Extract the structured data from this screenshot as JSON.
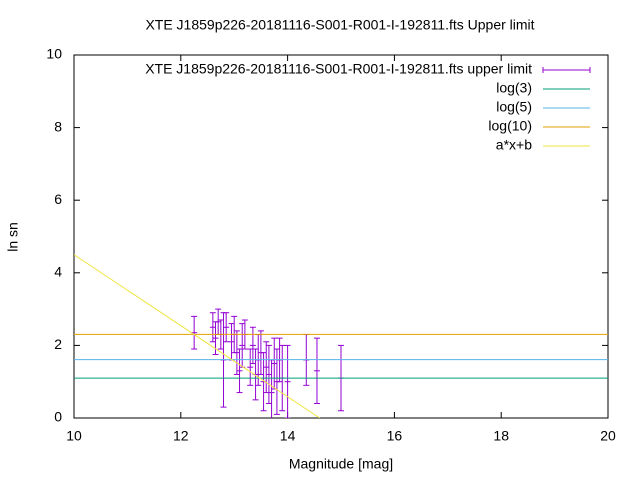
{
  "chart_data": {
    "type": "errorbar",
    "title": "XTE J1859p226-20181116-S001-R001-I-192811.fts Upper limit",
    "xlabel": "Magnitude [mag]",
    "ylabel": "ln sn",
    "xlim": [
      10,
      20
    ],
    "ylim": [
      0,
      10
    ],
    "xticks": [
      10,
      12,
      14,
      16,
      18,
      20
    ],
    "yticks": [
      0,
      2,
      4,
      6,
      8,
      10
    ],
    "legend": "top-right",
    "series": [
      {
        "name": "XTE J1859p226-20181116-S001-R001-I-192811.fts upper limit",
        "color": "#9400d3",
        "style": "errorbars",
        "x": [
          12.25,
          12.6,
          12.65,
          12.7,
          12.75,
          12.8,
          12.85,
          12.95,
          13.0,
          13.05,
          13.1,
          13.15,
          13.2,
          13.3,
          13.35,
          13.4,
          13.45,
          13.5,
          13.55,
          13.6,
          13.65,
          13.7,
          13.75,
          13.8,
          13.85,
          13.9,
          14.0,
          14.35,
          14.55,
          15.0
        ],
        "values": [
          2.35,
          2.5,
          2.2,
          2.65,
          2.3,
          1.6,
          2.5,
          2.1,
          2.3,
          1.8,
          1.3,
          2.0,
          2.3,
          1.4,
          2.0,
          1.2,
          1.6,
          1.8,
          1.0,
          1.4,
          1.2,
          0.7,
          1.5,
          1.0,
          1.6,
          1.1,
          1.0,
          1.6,
          1.3,
          1.1
        ],
        "errors": [
          0.45,
          0.4,
          0.45,
          0.35,
          0.4,
          1.3,
          0.4,
          0.5,
          0.5,
          0.6,
          0.6,
          0.6,
          0.4,
          0.5,
          0.5,
          0.7,
          0.7,
          0.6,
          0.8,
          0.7,
          0.8,
          0.9,
          0.7,
          0.9,
          0.6,
          0.9,
          1.0,
          0.7,
          0.9,
          0.9
        ]
      },
      {
        "name": "log(3)",
        "color": "#009e73",
        "style": "hline",
        "values": [
          1.0986
        ]
      },
      {
        "name": "log(5)",
        "color": "#56b4e9",
        "style": "hline",
        "values": [
          1.6094
        ]
      },
      {
        "name": "log(10)",
        "color": "#e69f00",
        "style": "hline",
        "values": [
          2.3026
        ]
      },
      {
        "name": "a*x+b",
        "color": "#f0e442",
        "style": "line",
        "x": [
          10,
          14.6
        ],
        "values": [
          4.5,
          0
        ]
      }
    ]
  }
}
